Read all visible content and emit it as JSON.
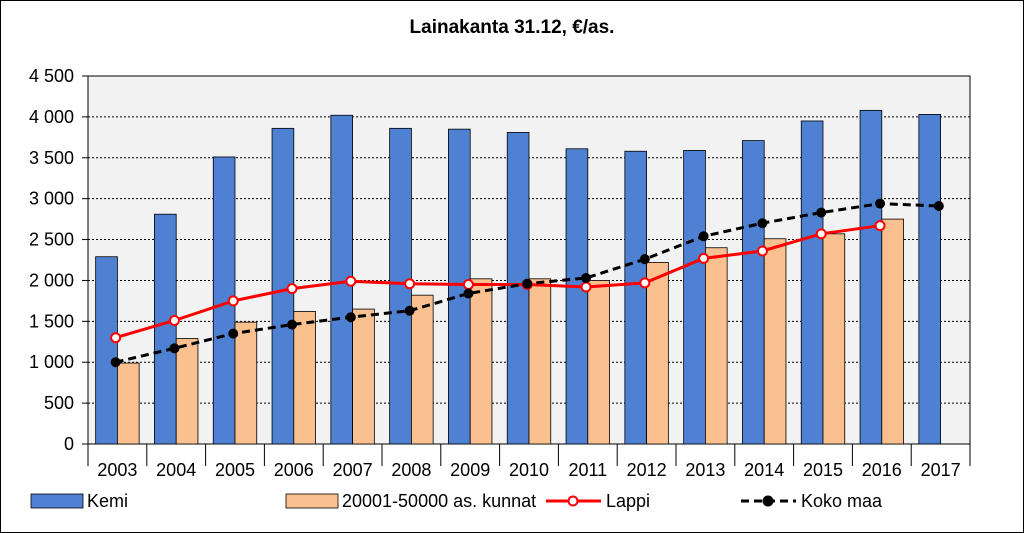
{
  "chart_data": {
    "type": "bar",
    "title": "Lainakanta 31.12, €/as.",
    "xlabel": "",
    "ylabel": "",
    "categories": [
      "2003",
      "2004",
      "2005",
      "2006",
      "2007",
      "2008",
      "2009",
      "2010",
      "2011",
      "2012",
      "2013",
      "2014",
      "2015",
      "2016",
      "2017"
    ],
    "ylim": [
      0,
      4500
    ],
    "yticks": [
      0,
      500,
      1000,
      1500,
      2000,
      2500,
      3000,
      3500,
      4000,
      4500
    ],
    "ytick_labels": [
      "0",
      "500",
      "1 000",
      "1 500",
      "2 000",
      "2 500",
      "3 000",
      "3 500",
      "4 000",
      "4 500"
    ],
    "grid": true,
    "legend_position": "bottom",
    "series": [
      {
        "name": "Kemi",
        "kind": "bar",
        "color": "#4f81d3",
        "values": [
          2290,
          2810,
          3510,
          3860,
          4020,
          3860,
          3850,
          3810,
          3610,
          3580,
          3590,
          3710,
          3950,
          4080,
          4030
        ]
      },
      {
        "name": "20001-50000 as. kunnat",
        "kind": "bar",
        "color": "#fac090",
        "values": [
          990,
          1290,
          1490,
          1620,
          1650,
          1820,
          2020,
          2020,
          2000,
          2220,
          2400,
          2510,
          2570,
          2750,
          null
        ]
      },
      {
        "name": "Lappi",
        "kind": "line",
        "color": "#ff0000",
        "style": "solid-open-markers",
        "values": [
          1300,
          1510,
          1750,
          1900,
          1990,
          1960,
          1950,
          1950,
          1920,
          1970,
          2270,
          2360,
          2570,
          2670,
          null
        ]
      },
      {
        "name": "Koko maa",
        "kind": "line",
        "color": "#000000",
        "style": "dashed-filled-markers",
        "values": [
          1000,
          1170,
          1350,
          1460,
          1550,
          1630,
          1840,
          1960,
          2030,
          2260,
          2540,
          2700,
          2830,
          2940,
          2910
        ]
      }
    ]
  }
}
